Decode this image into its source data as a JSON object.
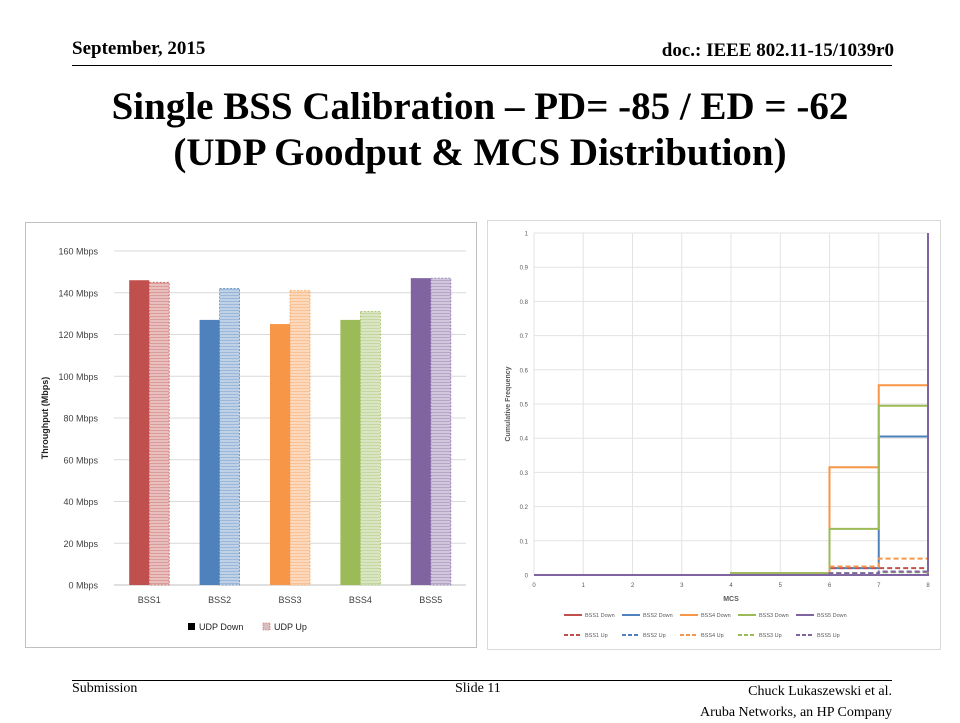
{
  "header": {
    "date": "September, 2015",
    "doc": "doc.: IEEE 802.11-15/1039r0"
  },
  "title": {
    "line1": "Single BSS Calibration – PD= -85 / ED = -62",
    "line2": "(UDP Goodput & MCS Distribution)"
  },
  "footer": {
    "left": "Submission",
    "center": "Slide 11",
    "right_line1": "Chuck Lukaszewski et al.",
    "right_line2": "Aruba Networks, an HP Company"
  },
  "chart_data": [
    {
      "type": "bar",
      "title": "",
      "xlabel": "",
      "ylabel": "Throughput (Mbps)",
      "ylim": [
        0,
        160
      ],
      "yticks": [
        0,
        20,
        40,
        60,
        80,
        100,
        120,
        140,
        160
      ],
      "ytick_labels": [
        "0 Mbps",
        "20 Mbps",
        "40 Mbps",
        "60 Mbps",
        "80 Mbps",
        "100 Mbps",
        "120 Mbps",
        "140 Mbps",
        "160 Mbps"
      ],
      "grid": true,
      "legend": "bottom",
      "categories": [
        "BSS1",
        "BSS2",
        "BSS3",
        "BSS4",
        "BSS5"
      ],
      "series": [
        {
          "name": "UDP Down",
          "values": [
            146,
            127,
            125,
            127,
            147
          ],
          "style": "solid"
        },
        {
          "name": "UDP Up",
          "values": [
            145,
            142,
            141,
            131,
            147
          ],
          "style": "hatched"
        }
      ],
      "category_colors": {
        "down": [
          "#c0504d",
          "#4f81bd",
          "#f79646",
          "#9bbb59",
          "#8064a2"
        ],
        "up": [
          "#e6b9b8",
          "#b9cde5",
          "#fcd5b5",
          "#d7e4bd",
          "#ccc1da"
        ]
      },
      "legend_swatch_colors": [
        "#000000",
        "#d9c0c0"
      ]
    },
    {
      "type": "line",
      "step": true,
      "title": "",
      "xlabel": "MCS",
      "ylabel": "Cumulative Frequency",
      "xlim": [
        0,
        8
      ],
      "ylim": [
        0,
        1
      ],
      "xticks": [
        0,
        1,
        2,
        3,
        4,
        5,
        6,
        7,
        8
      ],
      "yticks": [
        0,
        0.1,
        0.2,
        0.3,
        0.4,
        0.5,
        0.6,
        0.7,
        0.8,
        0.9,
        1
      ],
      "ytick_labels": [
        "0",
        "0.1",
        "0.2",
        "0.3",
        "0.4",
        "0.5",
        "0.6",
        "0.7",
        "0.8",
        "0.9",
        "1"
      ],
      "grid": true,
      "legend": "bottom",
      "series": [
        {
          "name": "BSS1 Down",
          "color": "#c0504d",
          "dash": false,
          "x": [
            0,
            1,
            2,
            3,
            4,
            5,
            6,
            7,
            8
          ],
          "y": [
            0,
            0,
            0,
            0,
            0,
            0,
            0,
            0,
            1
          ]
        },
        {
          "name": "BSS2 Down",
          "color": "#4f81bd",
          "dash": false,
          "x": [
            0,
            1,
            2,
            3,
            4,
            5,
            6,
            7,
            8
          ],
          "y": [
            0,
            0,
            0,
            0,
            0.005,
            0.005,
            0.02,
            0.405,
            1
          ]
        },
        {
          "name": "BSS4 Down",
          "color": "#f79646",
          "dash": false,
          "x": [
            0,
            1,
            2,
            3,
            4,
            5,
            6,
            7,
            8
          ],
          "y": [
            0,
            0,
            0,
            0,
            0.005,
            0.005,
            0.315,
            0.555,
            1
          ]
        },
        {
          "name": "BSS3 Down",
          "color": "#9bbb59",
          "dash": false,
          "x": [
            0,
            1,
            2,
            3,
            4,
            5,
            6,
            7,
            8
          ],
          "y": [
            0,
            0,
            0,
            0,
            0.005,
            0.005,
            0.135,
            0.495,
            1
          ]
        },
        {
          "name": "BSS5 Down",
          "color": "#8064a2",
          "dash": false,
          "x": [
            0,
            1,
            2,
            3,
            4,
            5,
            6,
            7,
            8
          ],
          "y": [
            0,
            0,
            0,
            0,
            0,
            0,
            0,
            0,
            1
          ]
        },
        {
          "name": "BSS1 Up",
          "color": "#c0504d",
          "dash": true,
          "x": [
            0,
            1,
            2,
            3,
            4,
            5,
            6,
            7,
            8
          ],
          "y": [
            0,
            0,
            0,
            0,
            0,
            0,
            0.02,
            0.02,
            1
          ]
        },
        {
          "name": "BSS2 Up",
          "color": "#4f81bd",
          "dash": true,
          "x": [
            0,
            1,
            2,
            3,
            4,
            5,
            6,
            7,
            8
          ],
          "y": [
            0,
            0,
            0,
            0,
            0,
            0,
            0.005,
            0.01,
            1
          ]
        },
        {
          "name": "BSS4 Up",
          "color": "#f79646",
          "dash": true,
          "x": [
            0,
            1,
            2,
            3,
            4,
            5,
            6,
            7,
            8
          ],
          "y": [
            0,
            0,
            0,
            0,
            0,
            0,
            0.025,
            0.048,
            1
          ]
        },
        {
          "name": "BSS3 Up",
          "color": "#9bbb59",
          "dash": true,
          "x": [
            0,
            1,
            2,
            3,
            4,
            5,
            6,
            7,
            8
          ],
          "y": [
            0,
            0,
            0,
            0,
            0,
            0,
            0.005,
            0.008,
            1
          ]
        },
        {
          "name": "BSS5 Up",
          "color": "#8064a2",
          "dash": true,
          "x": [
            0,
            1,
            2,
            3,
            4,
            5,
            6,
            7,
            8
          ],
          "y": [
            0,
            0,
            0,
            0,
            0,
            0,
            0.005,
            0.01,
            1
          ]
        }
      ]
    }
  ]
}
